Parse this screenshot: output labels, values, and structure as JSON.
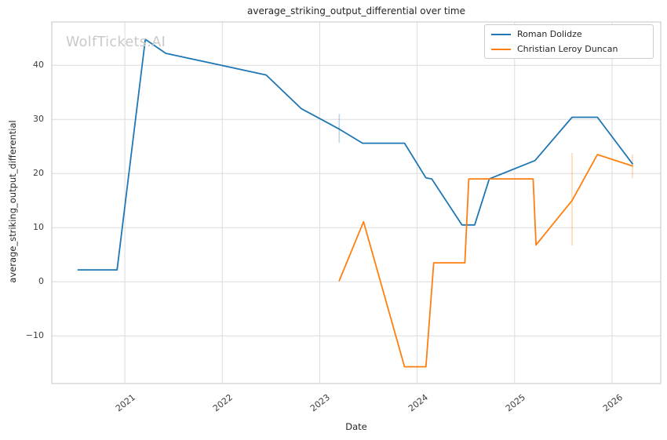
{
  "figure": {
    "watermark": "WolfTickets.AI"
  },
  "chart_data": {
    "type": "line",
    "title": "average_striking_output_differential over time",
    "xlabel": "Date",
    "ylabel": "average_striking_output_differential",
    "x_ticks": [
      2021,
      2022,
      2023,
      2024,
      2025,
      2026
    ],
    "y_ticks": [
      -10,
      0,
      10,
      20,
      30,
      40
    ],
    "xlim": [
      2020.25,
      2026.5
    ],
    "ylim": [
      -18.8,
      48.0
    ],
    "grid": true,
    "legend": {
      "position": "upper right",
      "entries": [
        "Roman Dolidze",
        "Christian Leroy Duncan"
      ]
    },
    "series": [
      {
        "name": "Roman Dolidze",
        "color": "#1f77b4",
        "x": [
          2020.52,
          2020.92,
          2021.21,
          2021.42,
          2022.45,
          2022.81,
          2023.2,
          2023.44,
          2023.87,
          2024.09,
          2024.15,
          2024.46,
          2024.59,
          2024.74,
          2025.21,
          2025.59,
          2025.85,
          2026.21
        ],
        "y": [
          2.2,
          2.2,
          44.8,
          42.2,
          38.2,
          32.0,
          28.2,
          25.6,
          25.6,
          19.2,
          19.0,
          10.5,
          10.5,
          19.0,
          22.4,
          30.4,
          30.4,
          21.8
        ]
      },
      {
        "name": "Christian Leroy Duncan",
        "color": "#ff7f0e",
        "x": [
          2023.2,
          2023.45,
          2023.87,
          2024.09,
          2024.17,
          2024.49,
          2024.53,
          2025.19,
          2025.22,
          2025.59,
          2025.85,
          2026.21
        ],
        "y": [
          0.2,
          11.1,
          -15.7,
          -15.7,
          3.5,
          3.5,
          19.0,
          19.0,
          6.8,
          15.0,
          23.5,
          21.4
        ]
      }
    ],
    "error_bars": [
      {
        "series_index": 0,
        "x": 2023.2,
        "y_low": 25.7,
        "y_high": 31.0
      },
      {
        "series_index": 1,
        "x": 2025.59,
        "y_low": 6.7,
        "y_high": 23.8
      },
      {
        "series_index": 1,
        "x": 2026.21,
        "y_low": 19.1,
        "y_high": 23.5
      }
    ]
  }
}
